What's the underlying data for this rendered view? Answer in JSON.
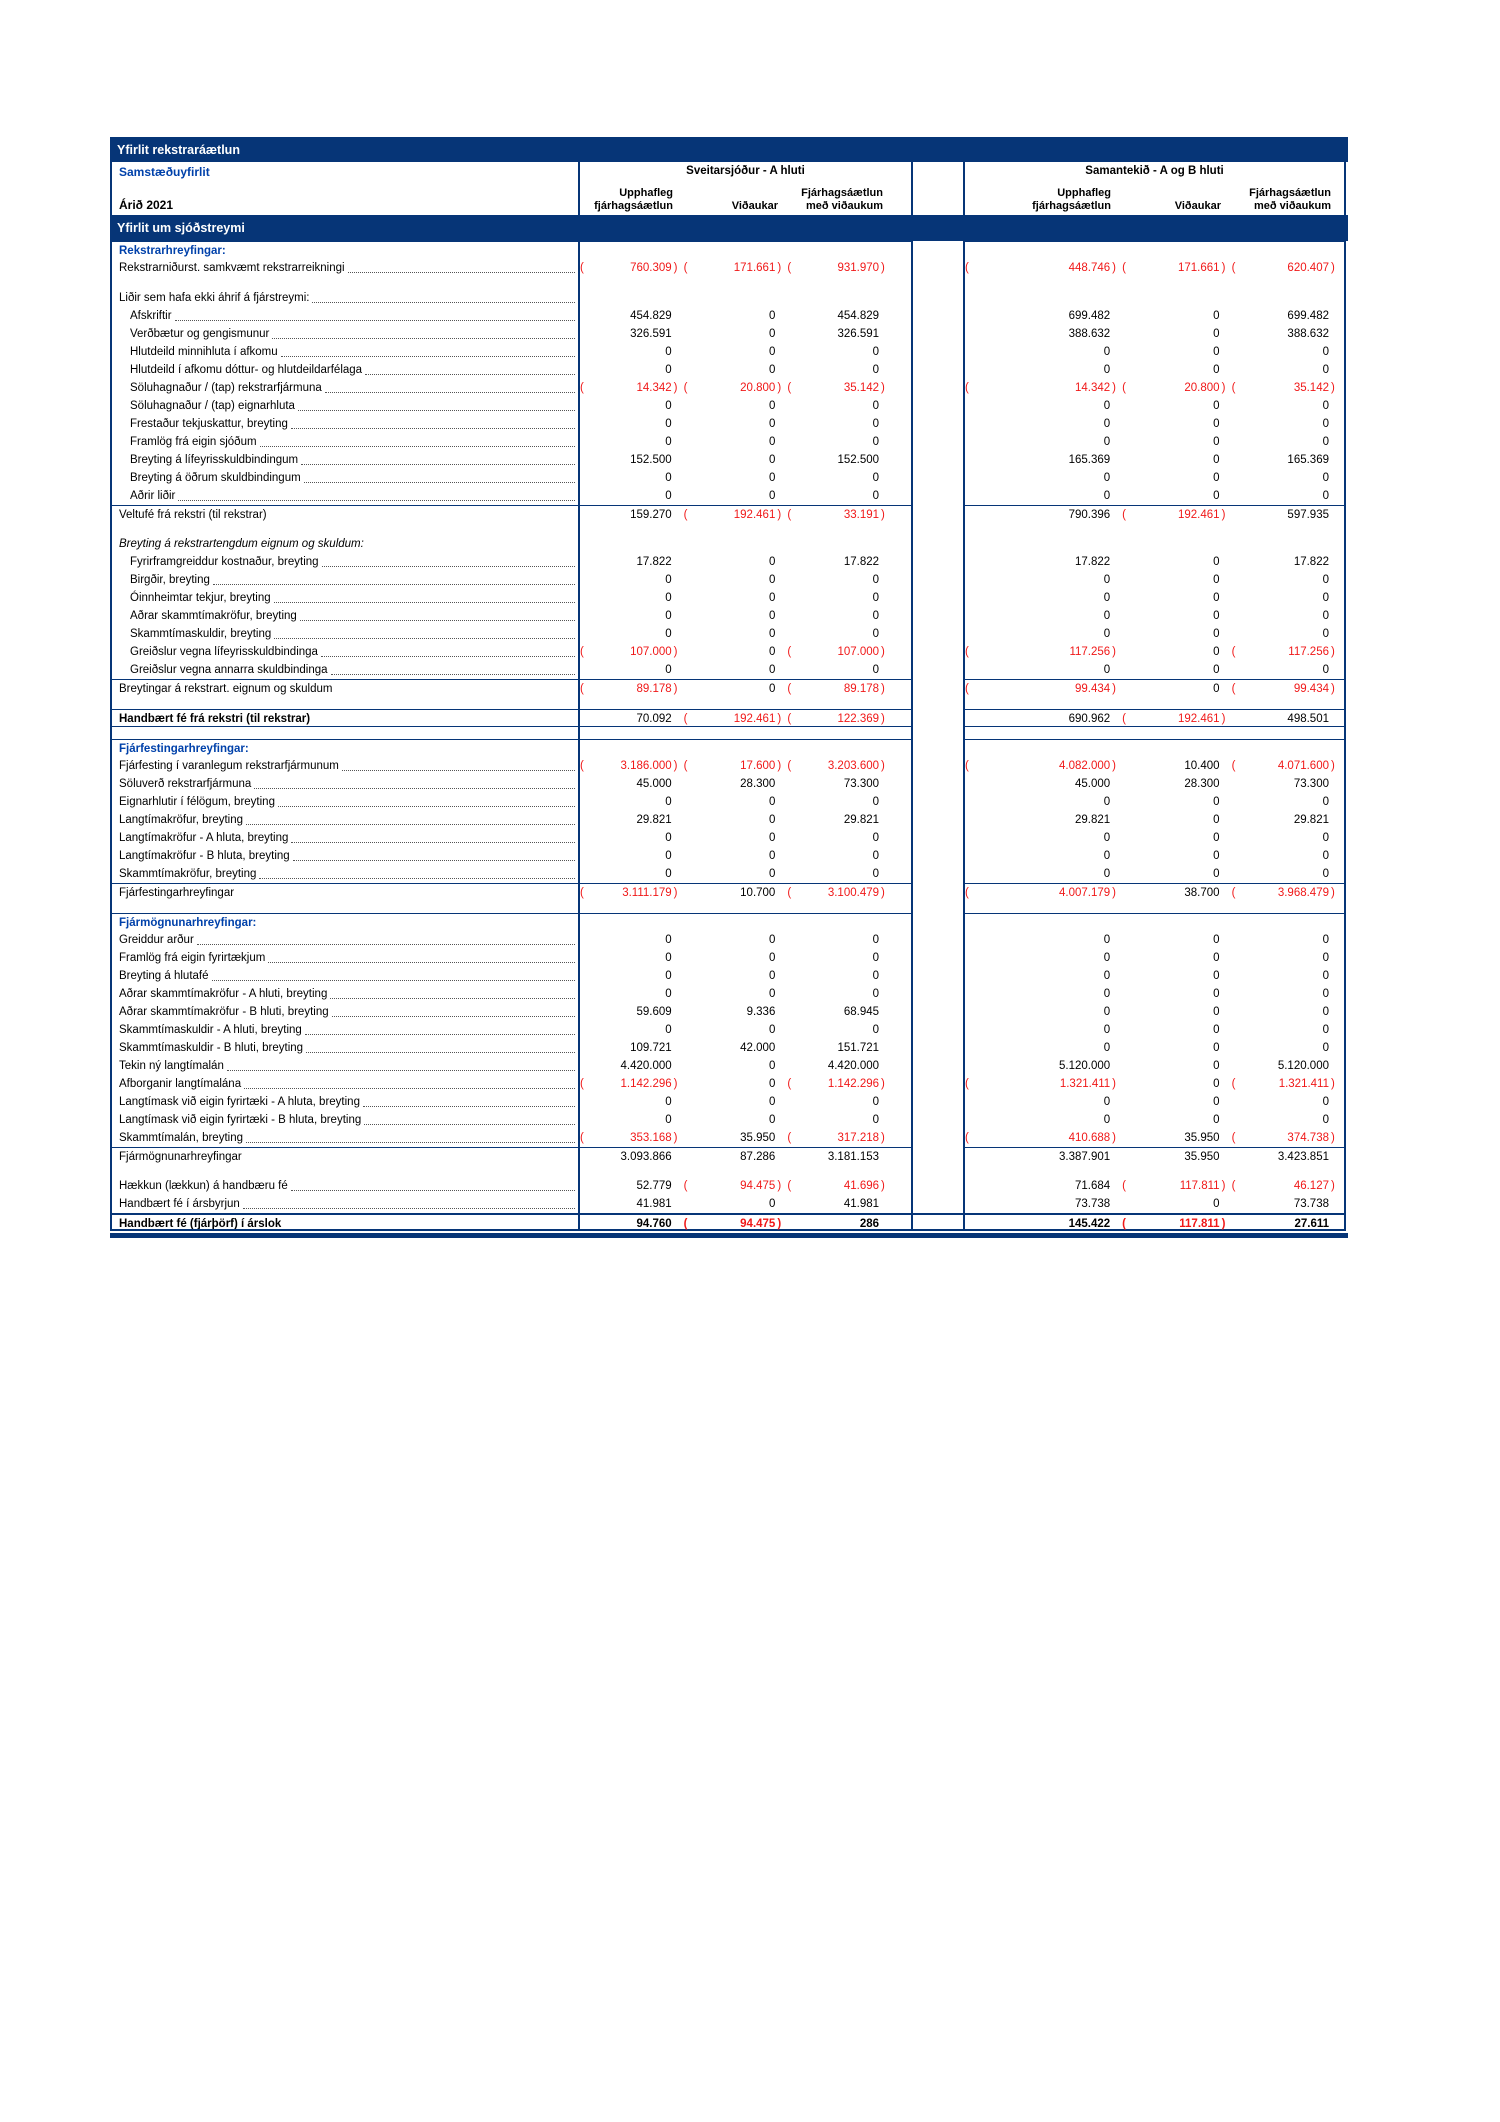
{
  "colors": {
    "navy_bar": "#063577",
    "blue_heading": "#0041aa",
    "negative_red": "#f01818"
  },
  "header": {
    "title": "Yfirlit rekstraráætlun",
    "subtitle": "Samstæðuyfirlit",
    "year": "Árið 2021",
    "section_title": "Yfirlit um sjóðstreymi",
    "group_a": "Sveitarsjóður - A hluti",
    "group_b": "Samantekið - A og B hluti",
    "columns": [
      [
        "Upphafleg",
        "fjárhagsáætlun"
      ],
      [
        "",
        "Viðaukar"
      ],
      [
        "Fjárhagsáætlun",
        "með viðaukum"
      ]
    ]
  },
  "table": {
    "rows": [
      {
        "t": "sech",
        "label": "Rekstrarhreyfingar:"
      },
      {
        "t": "lead",
        "label": "Rekstrarniðurst. samkvæmt rekstrarreikningi",
        "vals": [
          "(760.309)",
          "(171.661)",
          "(931.970)",
          "(448.746)",
          "(171.661)",
          "(620.407)"
        ]
      },
      {
        "t": "blank"
      },
      {
        "t": "lead",
        "label": "Liðir sem hafa ekki áhrif á fjárstreymi:",
        "vals": [
          "",
          "",
          "",
          "",
          "",
          ""
        ]
      },
      {
        "t": "lead",
        "ind": 1,
        "label": "Afskriftir",
        "vals": [
          "454.829",
          "0",
          "454.829",
          "699.482",
          "0",
          "699.482"
        ]
      },
      {
        "t": "lead",
        "ind": 1,
        "label": "Verðbætur og gengismunur",
        "vals": [
          "326.591",
          "0",
          "326.591",
          "388.632",
          "0",
          "388.632"
        ]
      },
      {
        "t": "lead",
        "ind": 1,
        "label": "Hlutdeild minnihluta í afkomu",
        "vals": [
          "0",
          "0",
          "0",
          "0",
          "0",
          "0"
        ]
      },
      {
        "t": "lead",
        "ind": 1,
        "label": "Hlutdeild í afkomu dóttur- og hlutdeildarfélaga",
        "vals": [
          "0",
          "0",
          "0",
          "0",
          "0",
          "0"
        ]
      },
      {
        "t": "lead",
        "ind": 1,
        "label": "Söluhagnaður / (tap) rekstrarfjármuna",
        "vals": [
          "(14.342)",
          "(20.800)",
          "(35.142)",
          "(14.342)",
          "(20.800)",
          "(35.142)"
        ]
      },
      {
        "t": "lead",
        "ind": 1,
        "label": "Söluhagnaður / (tap) eignarhluta",
        "vals": [
          "0",
          "0",
          "0",
          "0",
          "0",
          "0"
        ]
      },
      {
        "t": "lead",
        "ind": 1,
        "label": "Frestaður tekjuskattur, breyting",
        "vals": [
          "0",
          "0",
          "0",
          "0",
          "0",
          "0"
        ]
      },
      {
        "t": "lead",
        "ind": 1,
        "label": "Framlög frá eigin sjóðum",
        "vals": [
          "0",
          "0",
          "0",
          "0",
          "0",
          "0"
        ]
      },
      {
        "t": "lead",
        "ind": 1,
        "label": "Breyting á lífeyrisskuldbindingum",
        "vals": [
          "152.500",
          "0",
          "152.500",
          "165.369",
          "0",
          "165.369"
        ]
      },
      {
        "t": "lead",
        "ind": 1,
        "label": "Breyting á öðrum skuldbindingum",
        "vals": [
          "0",
          "0",
          "0",
          "0",
          "0",
          "0"
        ]
      },
      {
        "t": "lead",
        "ind": 1,
        "label": "Aðrir liðir",
        "vals": [
          "0",
          "0",
          "0",
          "0",
          "0",
          "0"
        ]
      },
      {
        "t": "total",
        "label": "Veltufé frá rekstri (til rekstrar)",
        "vals": [
          "159.270",
          "(192.461)",
          "(33.191)",
          "790.396",
          "(192.461)",
          "597.935"
        ]
      },
      {
        "t": "blank"
      },
      {
        "t": "isub",
        "label": "Breyting á rekstrartengdum eignum og skuldum:"
      },
      {
        "t": "lead",
        "ind": 1,
        "label": "Fyrirframgreiddur kostnaður, breyting",
        "vals": [
          "17.822",
          "0",
          "17.822",
          "17.822",
          "0",
          "17.822"
        ]
      },
      {
        "t": "lead",
        "ind": 1,
        "label": "Birgðir, breyting",
        "vals": [
          "0",
          "0",
          "0",
          "0",
          "0",
          "0"
        ]
      },
      {
        "t": "lead",
        "ind": 1,
        "label": "Óinnheimtar tekjur, breyting",
        "vals": [
          "0",
          "0",
          "0",
          "0",
          "0",
          "0"
        ]
      },
      {
        "t": "lead",
        "ind": 1,
        "label": "Aðrar skammtímakröfur, breyting",
        "vals": [
          "0",
          "0",
          "0",
          "0",
          "0",
          "0"
        ]
      },
      {
        "t": "lead",
        "ind": 1,
        "label": "Skammtímaskuldir, breyting",
        "vals": [
          "0",
          "0",
          "0",
          "0",
          "0",
          "0"
        ]
      },
      {
        "t": "lead",
        "ind": 1,
        "label": "Greiðslur vegna lífeyrisskuldbindinga",
        "vals": [
          "(107.000)",
          "0",
          "(107.000)",
          "(117.256)",
          "0",
          "(117.256)"
        ]
      },
      {
        "t": "lead",
        "ind": 1,
        "label": "Greiðslur vegna annarra skuldbindinga",
        "vals": [
          "0",
          "0",
          "0",
          "0",
          "0",
          "0"
        ]
      },
      {
        "t": "total",
        "label": "Breytingar á rekstrart. eignum og skuldum",
        "vals": [
          "(89.178)",
          "0",
          "(89.178)",
          "(99.434)",
          "0",
          "(99.434)"
        ]
      },
      {
        "t": "blank"
      },
      {
        "t": "btotal",
        "label": "Handbært fé frá rekstri (til rekstrar)",
        "vals": [
          "70.092",
          "(192.461)",
          "(122.369)",
          "690.962",
          "(192.461)",
          "498.501"
        ]
      },
      {
        "t": "blank"
      },
      {
        "t": "sech",
        "label": "Fjárfestingarhreyfingar:"
      },
      {
        "t": "lead",
        "label": "Fjárfesting í varanlegum rekstrarfjármunum",
        "vals": [
          "(3.186.000)",
          "(17.600)",
          "(3.203.600)",
          "(4.082.000)",
          "10.400",
          "(4.071.600)"
        ]
      },
      {
        "t": "lead",
        "label": "Söluverð rekstrarfjármuna",
        "vals": [
          "45.000",
          "28.300",
          "73.300",
          "45.000",
          "28.300",
          "73.300"
        ]
      },
      {
        "t": "lead",
        "label": "Eignarhlutir í félögum, breyting",
        "vals": [
          "0",
          "0",
          "0",
          "0",
          "0",
          "0"
        ]
      },
      {
        "t": "lead",
        "label": "Langtímakröfur, breyting",
        "vals": [
          "29.821",
          "0",
          "29.821",
          "29.821",
          "0",
          "29.821"
        ]
      },
      {
        "t": "lead",
        "label": "Langtímakröfur - A hluta, breyting",
        "vals": [
          "0",
          "0",
          "0",
          "0",
          "0",
          "0"
        ]
      },
      {
        "t": "lead",
        "label": "Langtímakröfur - B hluta, breyting",
        "vals": [
          "0",
          "0",
          "0",
          "0",
          "0",
          "0"
        ]
      },
      {
        "t": "lead",
        "label": "Skammtímakröfur, breyting",
        "vals": [
          "0",
          "0",
          "0",
          "0",
          "0",
          "0"
        ]
      },
      {
        "t": "total",
        "label": "Fjárfestingarhreyfingar",
        "vals": [
          "(3.111.179)",
          "10.700",
          "(3.100.479)",
          "(4.007.179)",
          "38.700",
          "(3.968.479)"
        ]
      },
      {
        "t": "blank"
      },
      {
        "t": "sech",
        "label": "Fjármögnunarhreyfingar:"
      },
      {
        "t": "lead",
        "label": "Greiddur arður",
        "vals": [
          "0",
          "0",
          "0",
          "0",
          "0",
          "0"
        ]
      },
      {
        "t": "lead",
        "label": "Framlög frá eigin fyrirtækjum",
        "vals": [
          "0",
          "0",
          "0",
          "0",
          "0",
          "0"
        ]
      },
      {
        "t": "lead",
        "label": "Breyting á hlutafé",
        "vals": [
          "0",
          "0",
          "0",
          "0",
          "0",
          "0"
        ]
      },
      {
        "t": "lead",
        "label": "Aðrar skammtímakröfur - A hluti, breyting",
        "vals": [
          "0",
          "0",
          "0",
          "0",
          "0",
          "0"
        ]
      },
      {
        "t": "lead",
        "label": "Aðrar skammtímakröfur - B hluti, breyting",
        "vals": [
          "59.609",
          "9.336",
          "68.945",
          "0",
          "0",
          "0"
        ]
      },
      {
        "t": "lead",
        "label": "Skammtímaskuldir - A hluti, breyting",
        "vals": [
          "0",
          "0",
          "0",
          "0",
          "0",
          "0"
        ]
      },
      {
        "t": "lead",
        "label": "Skammtímaskuldir - B hluti, breyting",
        "vals": [
          "109.721",
          "42.000",
          "151.721",
          "0",
          "0",
          "0"
        ]
      },
      {
        "t": "lead",
        "label": "Tekin ný langtímalán",
        "vals": [
          "4.420.000",
          "0",
          "4.420.000",
          "5.120.000",
          "0",
          "5.120.000"
        ]
      },
      {
        "t": "lead",
        "label": "Afborganir langtímalána",
        "vals": [
          "(1.142.296)",
          "0",
          "(1.142.296)",
          "(1.321.411)",
          "0",
          "(1.321.411)"
        ]
      },
      {
        "t": "lead",
        "label": "Langtímask við eigin fyrirtæki - A hluta, breyting",
        "vals": [
          "0",
          "0",
          "0",
          "0",
          "0",
          "0"
        ]
      },
      {
        "t": "lead",
        "label": "Langtímask við eigin fyrirtæki - B hluta, breyting",
        "vals": [
          "0",
          "0",
          "0",
          "0",
          "0",
          "0"
        ]
      },
      {
        "t": "lead",
        "label": "Skammtímalán, breyting",
        "vals": [
          "(353.168)",
          "35.950",
          "(317.218)",
          "(410.688)",
          "35.950",
          "(374.738)"
        ]
      },
      {
        "t": "total",
        "label": "Fjármögnunarhreyfingar",
        "vals": [
          "3.093.866",
          "87.286",
          "3.181.153",
          "3.387.901",
          "35.950",
          "3.423.851"
        ]
      },
      {
        "t": "blank"
      },
      {
        "t": "lead",
        "label": "Hækkun (lækkun) á handbæru fé",
        "vals": [
          "52.779",
          "(94.475)",
          "(41.696)",
          "71.684",
          "(117.811)",
          "(46.127)"
        ]
      },
      {
        "t": "lead",
        "label": "Handbært fé í ársbyrjun",
        "vals": [
          "41.981",
          "0",
          "41.981",
          "73.738",
          "0",
          "73.738"
        ]
      },
      {
        "t": "final",
        "label": "Handbært fé (fjárþörf) í árslok",
        "vals": [
          "94.760",
          "(94.475)",
          "286",
          "145.422",
          "(117.811)",
          "27.611"
        ]
      }
    ]
  }
}
